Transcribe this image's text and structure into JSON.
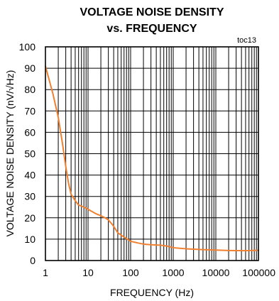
{
  "chart_data": {
    "type": "line",
    "title_line1": "VOLTAGE NOISE DENSITY",
    "title_line2": "vs. FREQUENCY",
    "tag": "toc13",
    "xlabel": "FREQUENCY (Hz)",
    "ylabel": "VOLTAGE NOISE DENSITY (nV/√Hz)",
    "xscale": "log",
    "xlim": [
      1,
      100000
    ],
    "ylim": [
      0,
      100
    ],
    "xticks": [
      "1",
      "10",
      "100",
      "1000",
      "10000",
      "100000"
    ],
    "yticks": [
      "0",
      "10",
      "20",
      "30",
      "40",
      "50",
      "60",
      "70",
      "80",
      "90",
      "100"
    ],
    "grid": true,
    "color": "#f08030",
    "series": [
      {
        "x": [
          1,
          1.5,
          2,
          2.5,
          3,
          3.5,
          4,
          5,
          6,
          8,
          10,
          15,
          20,
          25,
          30,
          35,
          40,
          50,
          70,
          100,
          150,
          200,
          300,
          500,
          700,
          1000,
          2000,
          5000,
          10000,
          20000,
          50000,
          100000
        ],
        "y": [
          91,
          78,
          67,
          55,
          44,
          36,
          31,
          28,
          26,
          25,
          24,
          22,
          21,
          20,
          19,
          17.5,
          16,
          13,
          11,
          9,
          8.2,
          7.7,
          7.4,
          7.2,
          6.8,
          6,
          5.5,
          5.1,
          4.9,
          4.7,
          4.6,
          4.8
        ]
      }
    ]
  }
}
